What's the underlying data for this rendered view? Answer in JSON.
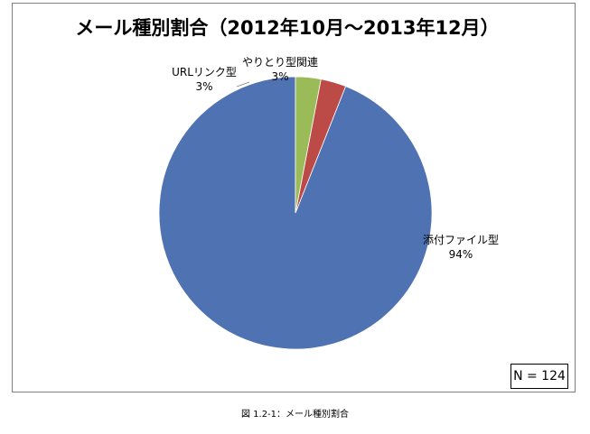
{
  "chart_data": {
    "type": "pie",
    "title": "メール種別割合（2012年10月～2013年12月）",
    "start_angle": "top",
    "direction": "clockwise",
    "slices": [
      {
        "label": "添付ファイル型",
        "value": 94,
        "value_label": "94%",
        "color": "#4f72b3"
      },
      {
        "label": "URLリンク型",
        "value": 3,
        "value_label": "3%",
        "color": "#bc4b48"
      },
      {
        "label": "やりとり型関連",
        "value": 3,
        "value_label": "3%",
        "color": "#9bbb59"
      }
    ],
    "annotation": "N = 124"
  },
  "caption": "図 1.2-1：メール種別割合"
}
